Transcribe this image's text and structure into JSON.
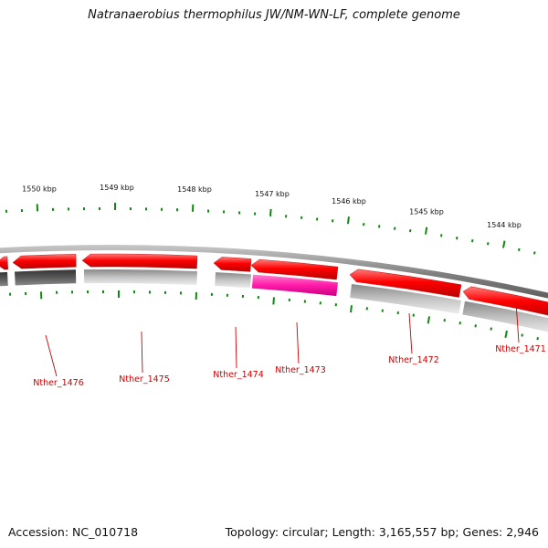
{
  "title": "Natranaerobius thermophilus JW/NM-WN-LF, complete genome",
  "footer": {
    "accession": "Accession: NC_010718",
    "summary": "Topology: circular; Length: 3,165,557 bp; Genes: 2,946"
  },
  "colors": {
    "forward": "#ff0000",
    "highlight": "#ff1aa8",
    "tick": "#118811",
    "label": "#cc0000",
    "backbone": "#808080"
  },
  "scale_ticks": [
    {
      "label": "1550 kbp",
      "kbp": 1550
    },
    {
      "label": "1549 kbp",
      "kbp": 1549
    },
    {
      "label": "1548 kbp",
      "kbp": 1548
    },
    {
      "label": "1547 kbp",
      "kbp": 1547
    },
    {
      "label": "1546 kbp",
      "kbp": 1546
    },
    {
      "label": "1545 kbp",
      "kbp": 1545
    },
    {
      "label": "1544 kbp",
      "kbp": 1544
    }
  ],
  "genes": [
    {
      "name": "Nther_1476"
    },
    {
      "name": "Nther_1475"
    },
    {
      "name": "Nther_1474"
    },
    {
      "name": "Nther_1473",
      "highlight": true
    },
    {
      "name": "Nther_1472"
    },
    {
      "name": "Nther_1471"
    }
  ]
}
